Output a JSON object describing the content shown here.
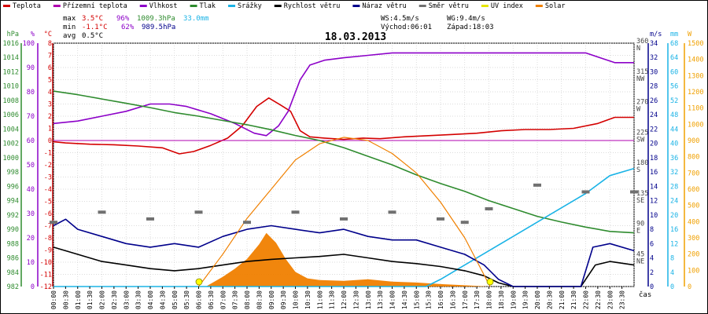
{
  "chart_data": {
    "type": "line",
    "title": "18.03.2013",
    "xlabel": "čas",
    "x_ticks": [
      "00:00",
      "00:30",
      "01:00",
      "01:30",
      "02:00",
      "02:30",
      "03:00",
      "03:30",
      "04:00",
      "04:30",
      "05:00",
      "05:30",
      "06:00",
      "06:30",
      "07:00",
      "07:30",
      "08:00",
      "08:30",
      "09:00",
      "09:30",
      "10:00",
      "10:30",
      "11:00",
      "11:30",
      "12:00",
      "12:30",
      "13:00",
      "13:30",
      "14:00",
      "14:30",
      "15:00",
      "15:30",
      "16:00",
      "16:30",
      "17:00",
      "17:30",
      "18:00",
      "18:30",
      "19:00",
      "19:30",
      "20:00",
      "20:30",
      "21:00",
      "21:30",
      "22:00",
      "22:30",
      "23:00",
      "23:30"
    ],
    "legend": [
      {
        "label": "Teplota",
        "color": "#d40000"
      },
      {
        "label": "Přízemní teplota",
        "color": "#b000b0"
      },
      {
        "label": "Vlhkost",
        "color": "#8c00c8"
      },
      {
        "label": "Tlak",
        "color": "#2e8b2e"
      },
      {
        "label": "Srážky",
        "color": "#1ab3e6"
      },
      {
        "label": "Rychlost větru",
        "color": "#000000"
      },
      {
        "label": "Náraz větru",
        "color": "#00008b"
      },
      {
        "label": "Směr větru",
        "color": "#707070"
      },
      {
        "label": "UV index",
        "color": "#e6e600"
      },
      {
        "label": "Solar",
        "color": "#f08000"
      }
    ],
    "stats": {
      "max": {
        "label": "max",
        "temp": "3.5°C",
        "hum": "96%",
        "press": "1009.3hPa",
        "rain": "33.0mm"
      },
      "min": {
        "label": "min",
        "temp": "-1.1°C",
        "hum": "62%",
        "press": "989.5hPa"
      },
      "avg": {
        "label": "avg",
        "temp": "0.5°C"
      },
      "ws": "WS:4.5m/s",
      "wg": "WG:9.4m/s",
      "sunrise": "Východ:06:01",
      "sunset": "Západ:18:03"
    },
    "axes": {
      "pressure": {
        "unit": "hPa",
        "ticks": [
          "1016",
          "1014",
          "1012",
          "1010",
          "1008",
          "1006",
          "1004",
          "1002",
          "1000",
          "998",
          "996",
          "994",
          "992",
          "990",
          "988",
          "986",
          "984",
          "982"
        ]
      },
      "humidity": {
        "unit": "%",
        "ticks": [
          "100",
          "90",
          "80",
          "70",
          "60",
          "50",
          "40",
          "30",
          "20",
          "10",
          "0"
        ]
      },
      "temperature": {
        "unit": "°C",
        "ticks": [
          "8",
          "7",
          "6",
          "5",
          "4",
          "3",
          "2",
          "1",
          "0",
          "-1",
          "-2",
          "-3",
          "-4",
          "-5",
          "-6",
          "-7",
          "-8",
          "-9",
          "-10",
          "-11",
          "-12"
        ]
      },
      "wind_dir": {
        "ticks": [
          "360",
          "315",
          "270",
          "225",
          "180",
          "135",
          "90",
          "45"
        ],
        "names": [
          "N",
          "NW",
          "W",
          "SW",
          "S",
          "SE",
          "E",
          "NE"
        ]
      },
      "wind_speed": {
        "unit": "m/s",
        "ticks": [
          "34",
          "32",
          "30",
          "28",
          "26",
          "24",
          "22",
          "20",
          "18",
          "16",
          "14",
          "12",
          "10",
          "8",
          "6",
          "4",
          "2",
          "0"
        ]
      },
      "rain": {
        "unit": "mm",
        "ticks": [
          "68",
          "64",
          "60",
          "56",
          "52",
          "48",
          "44",
          "40",
          "36",
          "32",
          "28",
          "24",
          "20",
          "16",
          "12",
          "8",
          "4",
          "0"
        ]
      },
      "solar": {
        "unit": "W",
        "ticks": [
          "1500",
          "1400",
          "1300",
          "1200",
          "1100",
          "1000",
          "900",
          "800",
          "700",
          "600",
          "500",
          "400",
          "300",
          "200",
          "100",
          "0"
        ]
      }
    },
    "series": [
      {
        "name": "Teplota",
        "unit": "°C",
        "points": [
          [
            0,
            -0.1
          ],
          [
            0.5,
            -0.2
          ],
          [
            1.5,
            -0.3
          ],
          [
            2.5,
            -0.35
          ],
          [
            3.5,
            -0.45
          ],
          [
            4.5,
            -0.6
          ],
          [
            5.2,
            -1.1
          ],
          [
            5.8,
            -0.9
          ],
          [
            6.5,
            -0.4
          ],
          [
            7.2,
            0.2
          ],
          [
            7.8,
            1.2
          ],
          [
            8.4,
            2.8
          ],
          [
            8.9,
            3.5
          ],
          [
            9.4,
            2.9
          ],
          [
            9.8,
            2.4
          ],
          [
            10.2,
            0.8
          ],
          [
            10.6,
            0.3
          ],
          [
            11.2,
            0.2
          ],
          [
            12.0,
            0.1
          ],
          [
            12.8,
            0.2
          ],
          [
            13.5,
            0.15
          ],
          [
            14.5,
            0.3
          ],
          [
            15.5,
            0.4
          ],
          [
            16.5,
            0.5
          ],
          [
            17.5,
            0.6
          ],
          [
            18.5,
            0.8
          ],
          [
            19.5,
            0.9
          ],
          [
            20.5,
            0.9
          ],
          [
            21.5,
            1.0
          ],
          [
            22.5,
            1.4
          ],
          [
            23.2,
            1.9
          ],
          [
            24,
            1.9
          ]
        ]
      },
      {
        "name": "Přízemní teplota",
        "unit": "°C",
        "points": [
          [
            0,
            0
          ],
          [
            24,
            0
          ]
        ]
      },
      {
        "name": "Vlhkost",
        "unit": "%",
        "points": [
          [
            0,
            67
          ],
          [
            1,
            68
          ],
          [
            2,
            70
          ],
          [
            3,
            72
          ],
          [
            4,
            75
          ],
          [
            4.8,
            75
          ],
          [
            5.5,
            74
          ],
          [
            6.5,
            71
          ],
          [
            7.5,
            67
          ],
          [
            8.3,
            63
          ],
          [
            8.8,
            62
          ],
          [
            9.3,
            66
          ],
          [
            9.7,
            72
          ],
          [
            10.2,
            85
          ],
          [
            10.6,
            91
          ],
          [
            11.2,
            93
          ],
          [
            12.0,
            94
          ],
          [
            13.0,
            95
          ],
          [
            14.0,
            96
          ],
          [
            15.0,
            96
          ],
          [
            16.0,
            96
          ],
          [
            17.0,
            96
          ],
          [
            18.0,
            96
          ],
          [
            19.0,
            96
          ],
          [
            20.0,
            96
          ],
          [
            21.0,
            96
          ],
          [
            22.0,
            96
          ],
          [
            22.6,
            94
          ],
          [
            23.2,
            92
          ],
          [
            24,
            92
          ]
        ]
      },
      {
        "name": "Tlak",
        "unit": "hPa",
        "points": [
          [
            0,
            1009.3
          ],
          [
            1,
            1008.8
          ],
          [
            2,
            1008.2
          ],
          [
            3,
            1007.6
          ],
          [
            4,
            1007.0
          ],
          [
            5,
            1006.3
          ],
          [
            6,
            1005.8
          ],
          [
            7,
            1005.2
          ],
          [
            8,
            1004.6
          ],
          [
            9,
            1003.9
          ],
          [
            10,
            1003.1
          ],
          [
            11,
            1002.4
          ],
          [
            12,
            1001.4
          ],
          [
            13,
            1000.2
          ],
          [
            14,
            999.0
          ],
          [
            15,
            997.6
          ],
          [
            16,
            996.4
          ],
          [
            17,
            995.3
          ],
          [
            18,
            994.0
          ],
          [
            19,
            992.9
          ],
          [
            20,
            991.8
          ],
          [
            21,
            991.0
          ],
          [
            22,
            990.3
          ],
          [
            23,
            989.7
          ],
          [
            24,
            989.5
          ]
        ]
      },
      {
        "name": "Srážky",
        "unit": "mm",
        "points": [
          [
            0,
            0
          ],
          [
            15.4,
            0
          ],
          [
            16,
            2
          ],
          [
            17,
            6
          ],
          [
            18,
            10
          ],
          [
            19,
            14
          ],
          [
            20,
            18
          ],
          [
            21,
            22
          ],
          [
            22,
            26
          ],
          [
            23,
            31
          ],
          [
            24,
            33
          ]
        ]
      },
      {
        "name": "Rychlost větru",
        "unit": "m/s",
        "points": [
          [
            0,
            5.5
          ],
          [
            1,
            4.5
          ],
          [
            2,
            3.5
          ],
          [
            3,
            3.0
          ],
          [
            4,
            2.5
          ],
          [
            5,
            2.2
          ],
          [
            6,
            2.5
          ],
          [
            7,
            3.0
          ],
          [
            8,
            3.5
          ],
          [
            9,
            3.8
          ],
          [
            10,
            4.0
          ],
          [
            11,
            4.2
          ],
          [
            12,
            4.5
          ],
          [
            13,
            4.0
          ],
          [
            14,
            3.5
          ],
          [
            15,
            3.2
          ],
          [
            16,
            2.8
          ],
          [
            17,
            2.2
          ],
          [
            17.8,
            1.5
          ],
          [
            18.4,
            0.5
          ],
          [
            19,
            0
          ],
          [
            21.8,
            0
          ],
          [
            22.4,
            3.0
          ],
          [
            23,
            3.5
          ],
          [
            24,
            3.0
          ]
        ]
      },
      {
        "name": "Náraz větru",
        "unit": "m/s",
        "points": [
          [
            0,
            8.5
          ],
          [
            0.5,
            9.4
          ],
          [
            1,
            8.0
          ],
          [
            2,
            7.0
          ],
          [
            3,
            6.0
          ],
          [
            4,
            5.5
          ],
          [
            5,
            6.0
          ],
          [
            6,
            5.5
          ],
          [
            7,
            7.0
          ],
          [
            8,
            8.0
          ],
          [
            9,
            8.5
          ],
          [
            10,
            8.0
          ],
          [
            11,
            7.5
          ],
          [
            12,
            8.0
          ],
          [
            13,
            7.0
          ],
          [
            14,
            6.5
          ],
          [
            15,
            6.5
          ],
          [
            16,
            5.5
          ],
          [
            17,
            4.5
          ],
          [
            17.8,
            3.0
          ],
          [
            18.4,
            1.0
          ],
          [
            19,
            0
          ],
          [
            21.8,
            0
          ],
          [
            22.3,
            5.5
          ],
          [
            23,
            6.0
          ],
          [
            24,
            5.0
          ]
        ]
      },
      {
        "name": "Směr větru",
        "unit": "°",
        "points": [
          [
            0,
            95
          ],
          [
            2,
            110
          ],
          [
            4,
            100
          ],
          [
            6,
            110
          ],
          [
            8,
            95
          ],
          [
            10,
            110
          ],
          [
            12,
            100
          ],
          [
            14,
            110
          ],
          [
            16,
            100
          ],
          [
            17,
            95
          ],
          [
            18,
            115
          ],
          [
            20,
            150
          ],
          [
            22,
            140
          ],
          [
            24,
            140
          ]
        ]
      },
      {
        "name": "Solar",
        "unit": "W",
        "points": [
          [
            6.0,
            0
          ],
          [
            7,
            200
          ],
          [
            8,
            420
          ],
          [
            9,
            600
          ],
          [
            10,
            780
          ],
          [
            11,
            880
          ],
          [
            12,
            920
          ],
          [
            13,
            900
          ],
          [
            14,
            820
          ],
          [
            15,
            700
          ],
          [
            16,
            520
          ],
          [
            17,
            300
          ],
          [
            18.05,
            0
          ]
        ]
      }
    ],
    "solar_measured": {
      "unit": "W",
      "points": [
        [
          6.3,
          0
        ],
        [
          7,
          60
        ],
        [
          7.5,
          110
        ],
        [
          8,
          170
        ],
        [
          8.5,
          260
        ],
        [
          8.8,
          330
        ],
        [
          9.2,
          270
        ],
        [
          9.6,
          170
        ],
        [
          10,
          90
        ],
        [
          10.5,
          50
        ],
        [
          11,
          40
        ],
        [
          12,
          35
        ],
        [
          13,
          45
        ],
        [
          14,
          30
        ],
        [
          15,
          25
        ],
        [
          16,
          15
        ],
        [
          17,
          8
        ],
        [
          18,
          0
        ]
      ]
    },
    "sun_markers": [
      "06:01",
      "18:03"
    ]
  }
}
